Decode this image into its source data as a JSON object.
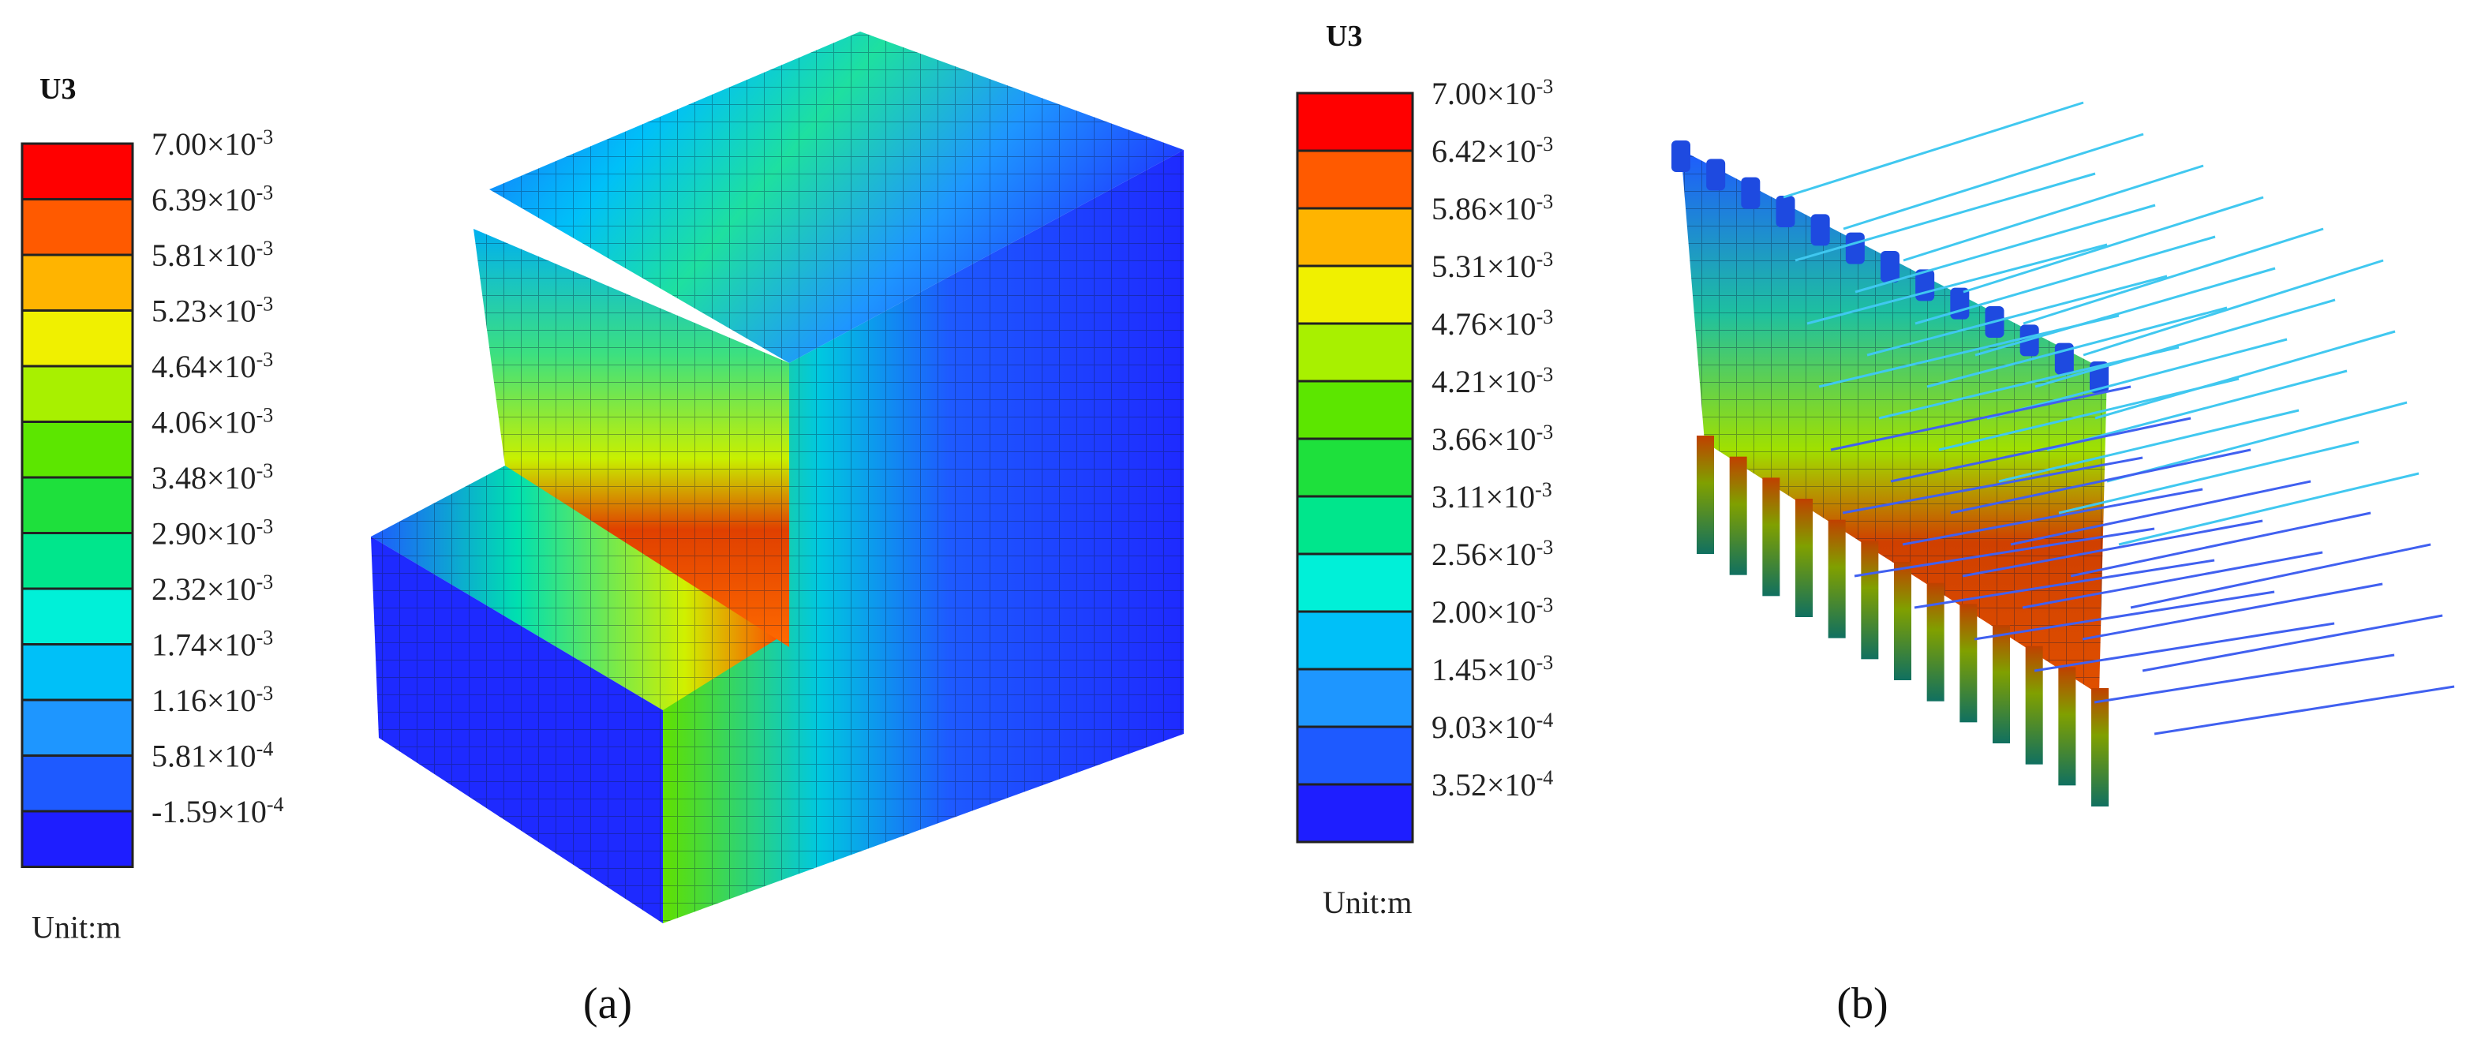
{
  "figure_a": {
    "legend": {
      "title": "U3",
      "unit": "Unit:m",
      "labels": [
        {
          "base": "7.00×10",
          "exp": "-3"
        },
        {
          "base": "6.39×10",
          "exp": "-3"
        },
        {
          "base": "5.81×10",
          "exp": "-3"
        },
        {
          "base": "5.23×10",
          "exp": "-3"
        },
        {
          "base": "4.64×10",
          "exp": "-3"
        },
        {
          "base": "4.06×10",
          "exp": "-3"
        },
        {
          "base": "3.48×10",
          "exp": "-3"
        },
        {
          "base": "2.90×10",
          "exp": "-3"
        },
        {
          "base": "2.32×10",
          "exp": "-3"
        },
        {
          "base": "1.74×10",
          "exp": "-3"
        },
        {
          "base": "1.16×10",
          "exp": "-3"
        },
        {
          "base": "5.81×10",
          "exp": "-4"
        },
        {
          "base": "-1.59×10",
          "exp": "-4"
        }
      ],
      "colors": [
        "#ff0000",
        "#ff5a00",
        "#ffb400",
        "#f0f000",
        "#a8f000",
        "#5ce600",
        "#1ee03c",
        "#00e68c",
        "#00f0d8",
        "#00c0f8",
        "#1e96ff",
        "#1e5aff",
        "#1e1eff"
      ]
    },
    "caption": "(a)"
  },
  "figure_b": {
    "legend": {
      "title": "U3",
      "unit": "Unit:m",
      "labels": [
        {
          "base": "7.00×10",
          "exp": "-3"
        },
        {
          "base": "6.42×10",
          "exp": "-3"
        },
        {
          "base": "5.86×10",
          "exp": "-3"
        },
        {
          "base": "5.31×10",
          "exp": "-3"
        },
        {
          "base": "4.76×10",
          "exp": "-3"
        },
        {
          "base": "4.21×10",
          "exp": "-3"
        },
        {
          "base": "3.66×10",
          "exp": "-3"
        },
        {
          "base": "3.11×10",
          "exp": "-3"
        },
        {
          "base": "2.56×10",
          "exp": "-3"
        },
        {
          "base": "2.00×10",
          "exp": "-3"
        },
        {
          "base": "1.45×10",
          "exp": "-3"
        },
        {
          "base": "9.03×10",
          "exp": "-4"
        },
        {
          "base": "3.52×10",
          "exp": "-4"
        }
      ],
      "colors": [
        "#ff0000",
        "#ff5a00",
        "#ffb400",
        "#f0f000",
        "#a8f000",
        "#5ce600",
        "#1ee03c",
        "#00e68c",
        "#00f0d8",
        "#00c0f8",
        "#1e96ff",
        "#1e5aff",
        "#1e1eff"
      ]
    },
    "caption": "(b)"
  }
}
